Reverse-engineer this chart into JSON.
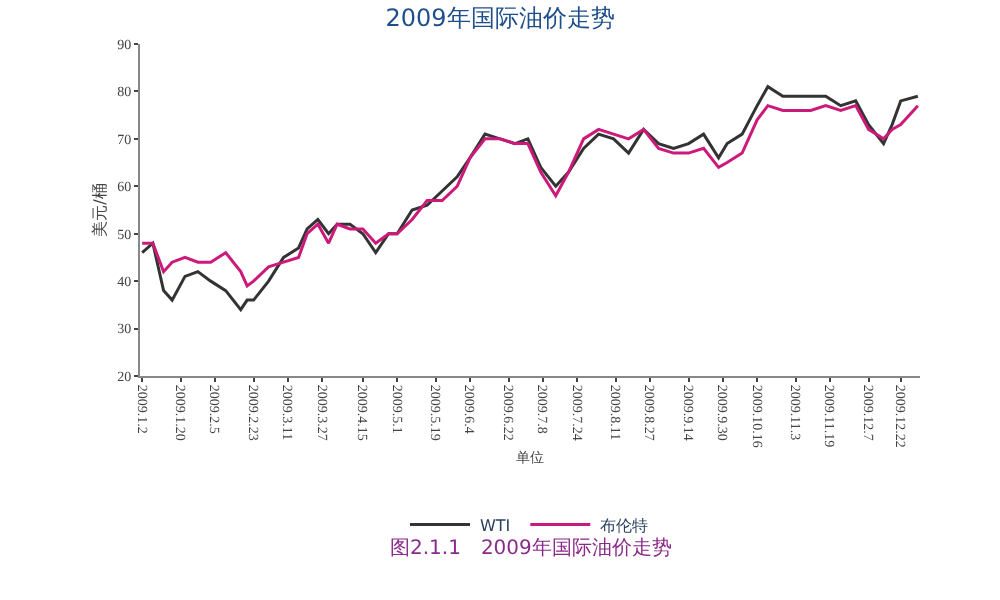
{
  "chart_data": {
    "type": "line",
    "title": "2009年国际油价走势",
    "ylabel": "美元/桶",
    "xlabel": "单位",
    "x": [
      "2009-01-02",
      "2009-01-07",
      "2009-01-12",
      "2009-01-16",
      "2009-01-22",
      "2009-01-28",
      "2009-02-03",
      "2009-02-10",
      "2009-02-17",
      "2009-02-20",
      "2009-02-23",
      "2009-03-02",
      "2009-03-09",
      "2009-03-16",
      "2009-03-20",
      "2009-03-25",
      "2009-03-30",
      "2009-04-03",
      "2009-04-09",
      "2009-04-15",
      "2009-04-21",
      "2009-04-27",
      "2009-05-01",
      "2009-05-08",
      "2009-05-15",
      "2009-05-22",
      "2009-05-29",
      "2009-06-04",
      "2009-06-11",
      "2009-06-18",
      "2009-06-25",
      "2009-07-01",
      "2009-07-07",
      "2009-07-14",
      "2009-07-20",
      "2009-07-27",
      "2009-08-03",
      "2009-08-10",
      "2009-08-17",
      "2009-08-24",
      "2009-08-31",
      "2009-09-07",
      "2009-09-14",
      "2009-09-21",
      "2009-09-28",
      "2009-10-02",
      "2009-10-09",
      "2009-10-16",
      "2009-10-21",
      "2009-10-28",
      "2009-11-03",
      "2009-11-10",
      "2009-11-17",
      "2009-11-24",
      "2009-12-01",
      "2009-12-07",
      "2009-12-14",
      "2009-12-18",
      "2009-12-22",
      "2009-12-30"
    ],
    "series": [
      {
        "name": "WTI",
        "color": "#333333",
        "values": [
          46,
          48,
          38,
          36,
          41,
          42,
          40,
          38,
          34,
          36,
          36,
          40,
          45,
          47,
          51,
          53,
          50,
          52,
          52,
          50,
          46,
          50,
          50,
          55,
          56,
          59,
          62,
          66,
          71,
          70,
          69,
          70,
          64,
          60,
          63,
          68,
          71,
          70,
          67,
          72,
          69,
          68,
          69,
          71,
          66,
          69,
          71,
          77,
          81,
          79,
          79,
          79,
          79,
          77,
          78,
          73,
          69,
          73,
          78,
          79
        ]
      },
      {
        "name": "布伦特",
        "color": "#cc1a7a",
        "values": [
          48,
          48,
          42,
          44,
          45,
          44,
          44,
          46,
          42,
          39,
          40,
          43,
          44,
          45,
          50,
          52,
          48,
          52,
          51,
          51,
          48,
          50,
          50,
          53,
          57,
          57,
          60,
          66,
          70,
          70,
          69,
          69,
          63,
          58,
          63,
          70,
          72,
          71,
          70,
          72,
          68,
          67,
          67,
          68,
          64,
          65,
          67,
          74,
          77,
          76,
          76,
          76,
          77,
          76,
          77,
          72,
          70,
          72,
          73,
          77
        ]
      }
    ],
    "xlim": [
      "2009-01-01",
      "2009-12-31"
    ],
    "xticks": [
      {
        "value": "2009-01-02",
        "label": "2009.1.2"
      },
      {
        "value": "2009-01-20",
        "label": "2009.1.20"
      },
      {
        "value": "2009-02-05",
        "label": "2009.2.5"
      },
      {
        "value": "2009-02-23",
        "label": "2009.2.23"
      },
      {
        "value": "2009-03-11",
        "label": "2009.3.11"
      },
      {
        "value": "2009-03-27",
        "label": "2009.3.27"
      },
      {
        "value": "2009-04-15",
        "label": "2009.4.15"
      },
      {
        "value": "2009-05-01",
        "label": "2009.5.1"
      },
      {
        "value": "2009-05-19",
        "label": "2009.5.19"
      },
      {
        "value": "2009-06-04",
        "label": "2009.6.4"
      },
      {
        "value": "2009-06-22",
        "label": "2009.6.22"
      },
      {
        "value": "2009-07-08",
        "label": "2009.7.8"
      },
      {
        "value": "2009-07-24",
        "label": "2009.7.24"
      },
      {
        "value": "2009-08-11",
        "label": "2009.8.11"
      },
      {
        "value": "2009-08-27",
        "label": "2009.8.27"
      },
      {
        "value": "2009-09-14",
        "label": "2009.9.14"
      },
      {
        "value": "2009-09-30",
        "label": "2009.9.30"
      },
      {
        "value": "2009-10-16",
        "label": "2009.10.16"
      },
      {
        "value": "2009-11-03",
        "label": "2009.11.3"
      },
      {
        "value": "2009-11-19",
        "label": "2009.11.19"
      },
      {
        "value": "2009-12-07",
        "label": "2009.12.7"
      },
      {
        "value": "2009-12-22",
        "label": "2009.12.22"
      }
    ],
    "ylim": [
      20,
      90
    ],
    "yticks": [
      20,
      30,
      40,
      50,
      60,
      70,
      80,
      90
    ],
    "legend": "bottom",
    "marker": "none",
    "line_style": "solid",
    "annotations": [
      "图2.1.1　2009年国际油价走势"
    ]
  }
}
